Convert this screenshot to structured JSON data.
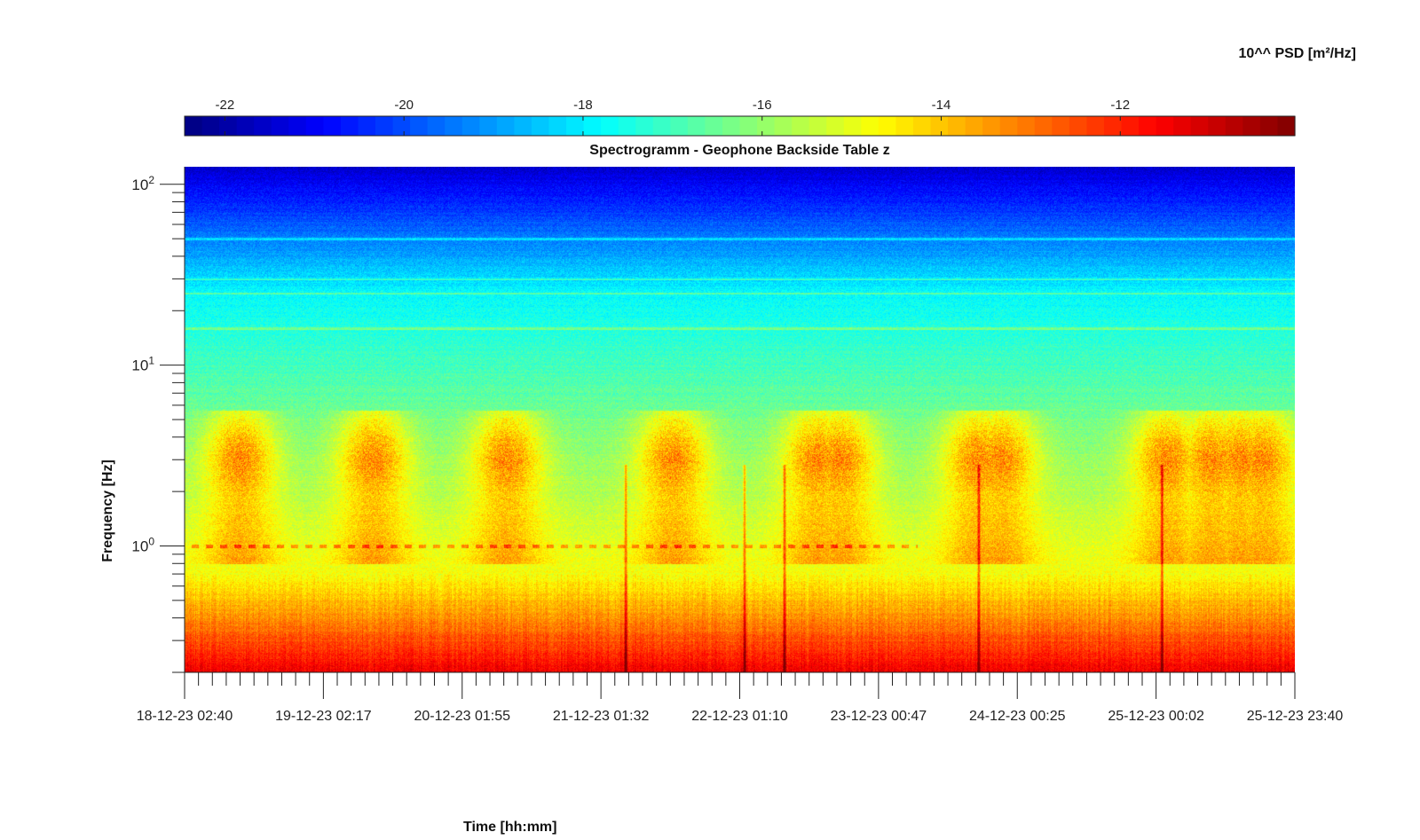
{
  "chart_data": {
    "type": "heatmap",
    "title": "Spectrogramm - Geophone Backside Table z",
    "xlabel": "Time [hh:mm]",
    "ylabel": "Frequency [Hz]",
    "x_ticks": [
      "18-12-23 02:40",
      "19-12-23 02:17",
      "20-12-23 01:55",
      "21-12-23 01:32",
      "22-12-23 01:10",
      "23-12-23 00:47",
      "24-12-23 00:25",
      "25-12-23 00:02",
      "25-12-23 23:40"
    ],
    "x_minor_per_major": 9,
    "y_scale": "log",
    "ylim": [
      0.2,
      125
    ],
    "y_ticks": [
      {
        "value": 1,
        "base": "10",
        "exp": "0"
      },
      {
        "value": 10,
        "base": "10",
        "exp": "1"
      },
      {
        "value": 100,
        "base": "10",
        "exp": "2"
      }
    ],
    "colorbar": {
      "label": "10^^ PSD [m²/Hz]",
      "range": [
        -22.45,
        -10.05
      ],
      "ticks": [
        -22,
        -20,
        -18,
        -16,
        -14,
        -12
      ],
      "colormap": "jet"
    },
    "features": {
      "day_activity_centers": [
        0.05,
        0.17,
        0.29,
        0.44,
        0.57,
        0.59,
        0.715,
        0.735,
        0.885,
        0.925,
        0.95,
        0.97
      ],
      "vertical_events": [
        0.397,
        0.504,
        0.54,
        0.715,
        0.88
      ],
      "lines_hz": [
        1.0,
        16,
        25,
        30,
        50
      ]
    }
  }
}
